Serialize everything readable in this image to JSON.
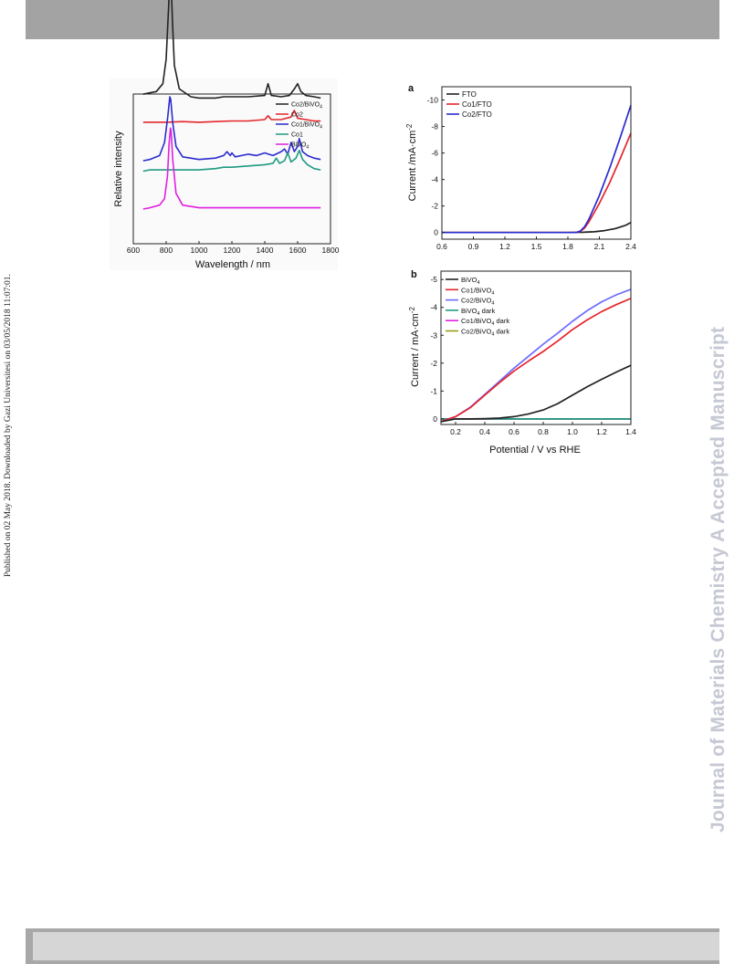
{
  "page": {
    "side_note": "Published on 02 May 2018. Downloaded by Gazi Universitesi on 03/05/2018 11:07:01.",
    "watermark": "Journal of Materials Chemistry A Accepted Manuscript"
  },
  "colors": {
    "black": "#222222",
    "red": "#e4262c",
    "blue": "#2b2bd0",
    "teal": "#1f9a82",
    "magenta": "#e020e0",
    "olive": "#9a9a1a"
  },
  "chart_data": [
    {
      "type": "line",
      "xlabel": "Wavelength / nm",
      "ylabel": "Relative intensity",
      "xlim": [
        600,
        1800
      ],
      "xticks": [
        "600",
        "800",
        "1000",
        "1200",
        "1400",
        "1600",
        "1800"
      ],
      "series": [
        {
          "name": "Co2/BiVO",
          "sub": "4",
          "color": "#222222",
          "offset": 0.8,
          "x": [
            660,
            700,
            740,
            780,
            800,
            815,
            822,
            826,
            830,
            838,
            850,
            880,
            950,
            1000,
            1100,
            1150,
            1200,
            1300,
            1400,
            1420,
            1440,
            1500,
            1550,
            1580,
            1600,
            1620,
            1650,
            1700,
            1740
          ],
          "y": [
            0.08,
            0.09,
            0.1,
            0.16,
            0.35,
            0.75,
            0.98,
            1.0,
            0.96,
            0.65,
            0.3,
            0.12,
            0.06,
            0.05,
            0.05,
            0.06,
            0.06,
            0.06,
            0.07,
            0.16,
            0.07,
            0.06,
            0.07,
            0.12,
            0.16,
            0.1,
            0.07,
            0.06,
            0.05
          ]
        },
        {
          "name": "Co2",
          "sub": "",
          "color": "#e4262c",
          "offset": 0.655,
          "x": [
            660,
            700,
            800,
            900,
            1000,
            1100,
            1200,
            1300,
            1400,
            1420,
            1440,
            1500,
            1560,
            1580,
            1600,
            1650,
            1700,
            1740
          ],
          "y": [
            0.01,
            0.01,
            0.01,
            0.015,
            0.01,
            0.015,
            0.02,
            0.02,
            0.03,
            0.06,
            0.03,
            0.03,
            0.05,
            0.1,
            0.04,
            0.03,
            0.02,
            0.02
          ]
        },
        {
          "name": "Co1/BiVO",
          "sub": "4",
          "color": "#2b2bd0",
          "offset": 0.36,
          "x": [
            660,
            700,
            760,
            790,
            810,
            822,
            828,
            840,
            860,
            900,
            1000,
            1100,
            1150,
            1170,
            1190,
            1200,
            1220,
            1300,
            1350,
            1400,
            1450,
            1500,
            1520,
            1540,
            1560,
            1580,
            1600,
            1610,
            1630,
            1660,
            1700,
            1740
          ],
          "y": [
            0.01,
            0.02,
            0.05,
            0.15,
            0.35,
            0.5,
            0.48,
            0.3,
            0.12,
            0.04,
            0.02,
            0.03,
            0.05,
            0.08,
            0.05,
            0.07,
            0.04,
            0.06,
            0.05,
            0.07,
            0.05,
            0.08,
            0.1,
            0.06,
            0.15,
            0.08,
            0.12,
            0.18,
            0.08,
            0.05,
            0.03,
            0.02
          ]
        },
        {
          "name": "Co1",
          "sub": "",
          "color": "#1f9a82",
          "offset": 0.29,
          "x": [
            660,
            700,
            800,
            900,
            1000,
            1100,
            1150,
            1200,
            1300,
            1400,
            1450,
            1470,
            1490,
            1520,
            1540,
            1560,
            1590,
            1610,
            1630,
            1660,
            1700,
            1740
          ],
          "y": [
            0.0,
            0.01,
            0.01,
            0.01,
            0.01,
            0.02,
            0.03,
            0.03,
            0.04,
            0.05,
            0.06,
            0.1,
            0.06,
            0.08,
            0.14,
            0.07,
            0.1,
            0.16,
            0.09,
            0.05,
            0.02,
            0.01
          ]
        },
        {
          "name": "BiVO",
          "sub": "4",
          "color": "#e020e0",
          "offset": 0.0,
          "x": [
            660,
            700,
            760,
            790,
            808,
            818,
            826,
            830,
            840,
            860,
            900,
            1000,
            1100,
            1200,
            1300,
            1400,
            1500,
            1600,
            1700,
            1740
          ],
          "y": [
            0.0,
            0.01,
            0.03,
            0.08,
            0.25,
            0.5,
            0.62,
            0.6,
            0.38,
            0.12,
            0.03,
            0.01,
            0.01,
            0.01,
            0.01,
            0.01,
            0.01,
            0.01,
            0.01,
            0.01
          ]
        }
      ]
    },
    {
      "type": "line",
      "panel_label": "a",
      "ylabel": "Current /mA·cm",
      "ylabel_sup": "-2",
      "xlim": [
        0.6,
        2.4
      ],
      "ylim": [
        0.5,
        -11
      ],
      "xticks": [
        "0.6",
        "0.9",
        "1.2",
        "1.5",
        "1.8",
        "2.1",
        "2.4"
      ],
      "yticks": [
        "0",
        "-2",
        "-4",
        "-6",
        "-8",
        "-10"
      ],
      "series": [
        {
          "name": "FTO",
          "color": "#222222",
          "x": [
            0.6,
            1.2,
            1.8,
            1.95,
            2.05,
            2.15,
            2.25,
            2.35,
            2.4
          ],
          "y": [
            0,
            0,
            0,
            -0.02,
            -0.06,
            -0.15,
            -0.3,
            -0.55,
            -0.75
          ]
        },
        {
          "name": "Co1/FTO",
          "color": "#e4262c",
          "x": [
            0.6,
            1.2,
            1.8,
            1.88,
            1.92,
            1.96,
            2.0,
            2.05,
            2.1,
            2.2,
            2.3,
            2.4
          ],
          "y": [
            0,
            0,
            0,
            0,
            -0.1,
            -0.35,
            -0.8,
            -1.5,
            -2.2,
            -3.8,
            -5.6,
            -7.5
          ]
        },
        {
          "name": "Co2/FTO",
          "color": "#2b2bd0",
          "x": [
            0.6,
            1.2,
            1.8,
            1.88,
            1.92,
            1.96,
            2.0,
            2.05,
            2.1,
            2.2,
            2.3,
            2.4
          ],
          "y": [
            0,
            0,
            0,
            0,
            -0.12,
            -0.45,
            -1.0,
            -1.9,
            -2.8,
            -4.9,
            -7.2,
            -9.6
          ]
        }
      ]
    },
    {
      "type": "line",
      "panel_label": "b",
      "xlabel": "Potential / V vs RHE",
      "ylabel": "Current / mA·cm",
      "ylabel_sup": "-2",
      "xlim": [
        0.1,
        1.4
      ],
      "ylim": [
        0.2,
        -5.3
      ],
      "xticks": [
        "0.2",
        "0.4",
        "0.6",
        "0.8",
        "1.0",
        "1.2",
        "1.4"
      ],
      "yticks": [
        "0",
        "-1",
        "-2",
        "-3",
        "-4",
        "-5"
      ],
      "series": [
        {
          "name": "BiVO",
          "sub": "4",
          "suffix": "",
          "color": "#222222",
          "x": [
            0.1,
            0.2,
            0.3,
            0.4,
            0.5,
            0.6,
            0.7,
            0.8,
            0.9,
            1.0,
            1.1,
            1.2,
            1.3,
            1.4
          ],
          "y": [
            0.1,
            0.0,
            0.0,
            -0.01,
            -0.03,
            -0.08,
            -0.18,
            -0.32,
            -0.55,
            -0.85,
            -1.15,
            -1.42,
            -1.68,
            -1.92
          ]
        },
        {
          "name": "Co1/BiVO",
          "sub": "4",
          "suffix": "",
          "color": "#e4262c",
          "x": [
            0.1,
            0.15,
            0.2,
            0.3,
            0.4,
            0.5,
            0.6,
            0.7,
            0.8,
            0.9,
            1.0,
            1.1,
            1.2,
            1.3,
            1.4
          ],
          "y": [
            0.1,
            0.0,
            -0.08,
            -0.4,
            -0.85,
            -1.3,
            -1.72,
            -2.08,
            -2.42,
            -2.8,
            -3.2,
            -3.55,
            -3.85,
            -4.1,
            -4.32
          ]
        },
        {
          "name": "Co2/BiVO",
          "sub": "4",
          "suffix": "",
          "color": "#6b6bff",
          "x": [
            0.1,
            0.15,
            0.2,
            0.3,
            0.4,
            0.5,
            0.6,
            0.7,
            0.8,
            0.9,
            1.0,
            1.1,
            1.2,
            1.3,
            1.4
          ],
          "y": [
            0.1,
            0.0,
            -0.08,
            -0.42,
            -0.88,
            -1.35,
            -1.82,
            -2.25,
            -2.68,
            -3.08,
            -3.5,
            -3.88,
            -4.2,
            -4.45,
            -4.65
          ]
        },
        {
          "name": "BiVO",
          "sub": "4",
          "suffix": "  dark",
          "color": "#1f9a82",
          "x": [
            0.1,
            1.4
          ],
          "y": [
            0.0,
            0.0
          ]
        },
        {
          "name": "Co1/BiVO",
          "sub": "4",
          "suffix": "  dark",
          "color": "#e020e0",
          "x": [
            0.1,
            1.4
          ],
          "y": [
            0.0,
            0.0
          ]
        },
        {
          "name": "Co2/BiVO",
          "sub": "4",
          "suffix": "  dark",
          "color": "#9a9a1a",
          "x": [
            0.1,
            1.4
          ],
          "y": [
            0.0,
            0.0
          ]
        }
      ]
    }
  ]
}
